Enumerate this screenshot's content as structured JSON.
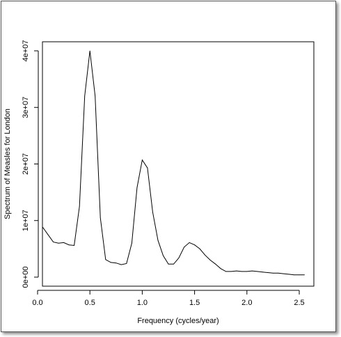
{
  "chart_data": {
    "type": "line",
    "title": "",
    "xlabel": "Frequency (cycles/year)",
    "ylabel": "Spectrum of Measles for London",
    "xlim": [
      0,
      2.6
    ],
    "ylim": [
      0,
      40000000
    ],
    "xticks": [
      0.0,
      0.5,
      1.0,
      1.5,
      2.0,
      2.5
    ],
    "xtick_labels": [
      "0.0",
      "0.5",
      "1.0",
      "1.5",
      "2.0",
      "2.5"
    ],
    "yticks": [
      0,
      10000000,
      20000000,
      30000000,
      40000000
    ],
    "ytick_labels": [
      "0e+00",
      "1e+07",
      "2e+07",
      "3e+07",
      "4e+07"
    ],
    "grid": false,
    "series": [
      {
        "color": "#000000",
        "x": [
          0.05,
          0.1,
          0.15,
          0.2,
          0.25,
          0.3,
          0.35,
          0.4,
          0.45,
          0.5,
          0.55,
          0.6,
          0.65,
          0.7,
          0.75,
          0.8,
          0.85,
          0.9,
          0.95,
          1.0,
          1.05,
          1.1,
          1.15,
          1.2,
          1.25,
          1.3,
          1.35,
          1.4,
          1.45,
          1.5,
          1.55,
          1.6,
          1.65,
          1.7,
          1.75,
          1.8,
          1.85,
          1.9,
          1.95,
          2.0,
          2.05,
          2.1,
          2.15,
          2.2,
          2.25,
          2.3,
          2.35,
          2.4,
          2.45,
          2.5,
          2.55
        ],
        "y": [
          8800000,
          7500000,
          6200000,
          6000000,
          6100000,
          5700000,
          5600000,
          12500000,
          32000000,
          40000000,
          32000000,
          10500000,
          3100000,
          2600000,
          2500000,
          2200000,
          2400000,
          6000000,
          15800000,
          20700000,
          19300000,
          11500000,
          6500000,
          3800000,
          2300000,
          2300000,
          3400000,
          5300000,
          6100000,
          5700000,
          5000000,
          3900000,
          3000000,
          2300000,
          1500000,
          1000000,
          1000000,
          1100000,
          1000000,
          1000000,
          1100000,
          1000000,
          900000,
          800000,
          700000,
          700000,
          600000,
          500000,
          400000,
          400000,
          400000
        ]
      }
    ]
  }
}
